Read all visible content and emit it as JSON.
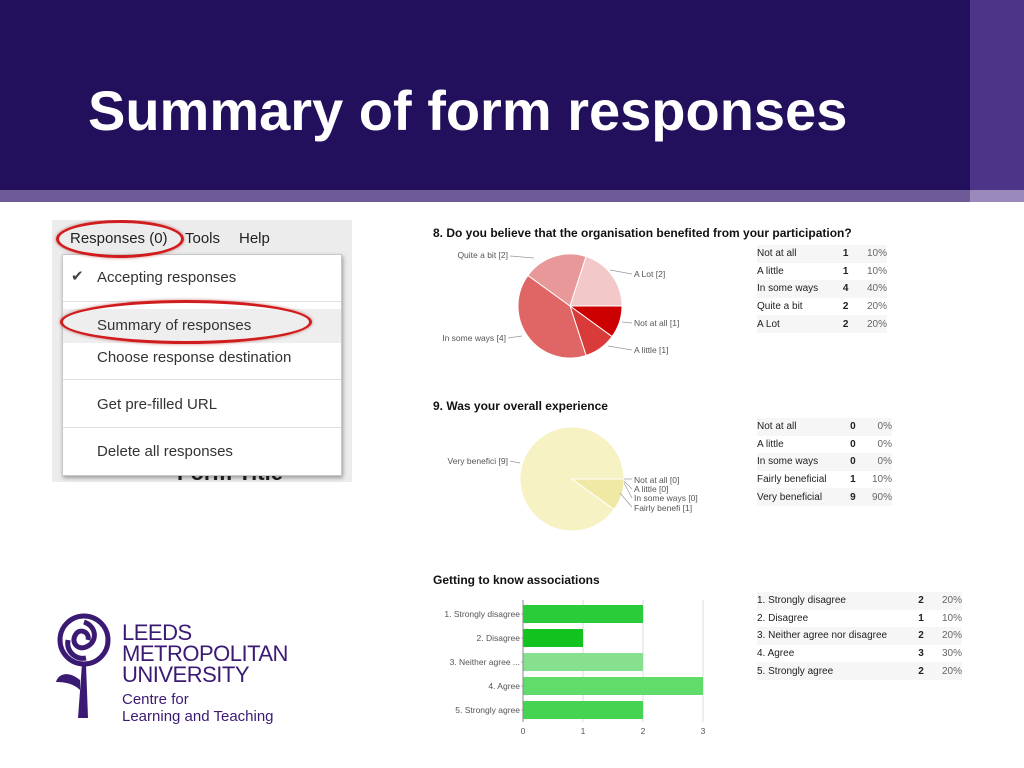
{
  "slide": {
    "title": "Summary of form responses"
  },
  "menu": {
    "menubar": [
      "Responses (0)",
      "Tools",
      "Help"
    ],
    "items": [
      "Accepting responses",
      "Summary of responses",
      "Choose response destination",
      "Get pre-filled URL",
      "Delete all responses"
    ],
    "background_text": "Form Title"
  },
  "chart_data": [
    {
      "type": "pie",
      "title": "8. Do you believe that the organisation benefited from your participation?",
      "categories": [
        "Not at all",
        "A little",
        "In some ways",
        "Quite a bit",
        "A Lot"
      ],
      "values": [
        1,
        1,
        4,
        2,
        2
      ],
      "percents": [
        "10%",
        "10%",
        "40%",
        "20%",
        "20%"
      ],
      "slice_labels": [
        "Not at all [1]",
        "A little [1]",
        "In some ways [4]",
        "Quite a bit [2]",
        "A Lot [2]"
      ],
      "colors": [
        "#cc0000",
        "#d93a3a",
        "#e06565",
        "#e89898",
        "#f2c8c8"
      ]
    },
    {
      "type": "pie",
      "title": "9. Was your overall experience",
      "categories": [
        "Not at all",
        "A little",
        "In some ways",
        "Fairly beneficial",
        "Very beneficial"
      ],
      "values": [
        0,
        0,
        0,
        1,
        9
      ],
      "percents": [
        "0%",
        "0%",
        "0%",
        "10%",
        "90%"
      ],
      "slice_labels": [
        "Not at all [0]",
        "A little [0]",
        "In some ways [0]",
        "Fairly benefi [1]",
        "Very benefici [9]"
      ],
      "colors": [
        "#e8e090",
        "#ece69e",
        "#efeaac",
        "#f0e9a6",
        "#f6f2c4"
      ]
    },
    {
      "type": "bar",
      "orientation": "horizontal",
      "title": "Getting to know associations",
      "categories": [
        "1. Strongly disagree",
        "2. Disagree",
        "3. Neither agree ...",
        "4. Agree",
        "5. Strongly agree"
      ],
      "table_categories": [
        "1. Strongly disagree",
        "2. Disagree",
        "3. Neither agree nor disagree",
        "4. Agree",
        "5. Strongly agree"
      ],
      "values": [
        2,
        1,
        2,
        3,
        2
      ],
      "percents": [
        "20%",
        "10%",
        "20%",
        "30%",
        "20%"
      ],
      "xlim": [
        0,
        3
      ],
      "xticks": [
        "0",
        "1",
        "2",
        "3"
      ],
      "colors": [
        "#2bcc3a",
        "#12c21f",
        "#86e08e",
        "#5fdc69",
        "#45d351"
      ],
      "grid": true
    }
  ],
  "logo": {
    "lines": [
      "LEEDS",
      "METROPOLITAN",
      "UNIVERSITY"
    ],
    "sub": [
      "Centre for",
      "Learning and Teaching"
    ],
    "color": "#3b1a73"
  }
}
